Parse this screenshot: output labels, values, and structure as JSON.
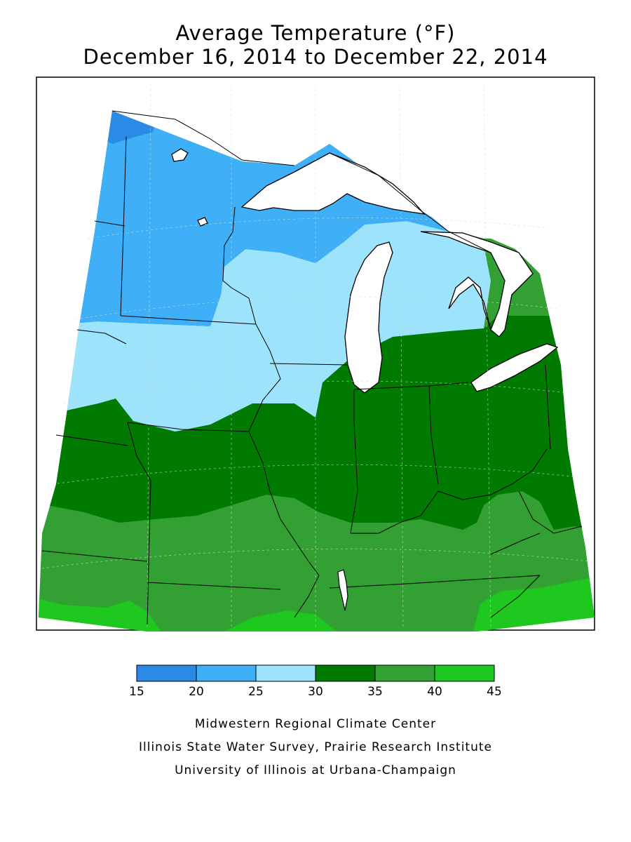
{
  "title": "Average Temperature (°F)",
  "subtitle": "December 16, 2014 to December 22, 2014",
  "colors": {
    "c15_20": "#2b8ae6",
    "c20_25": "#3fb0f8",
    "c25_30": "#9ce3fb",
    "c30_35": "#007a00",
    "c35_40": "#32a032",
    "c40_45": "#1ec81e",
    "water": "#ffffff",
    "outline": "#000000"
  },
  "legend": {
    "bins": [
      {
        "from": 15,
        "to": 20,
        "color": "#2b8ae6"
      },
      {
        "from": 20,
        "to": 25,
        "color": "#3fb0f8"
      },
      {
        "from": 25,
        "to": 30,
        "color": "#9ce3fb"
      },
      {
        "from": 30,
        "to": 35,
        "color": "#007a00"
      },
      {
        "from": 35,
        "to": 40,
        "color": "#32a032"
      },
      {
        "from": 40,
        "to": 45,
        "color": "#1ec81e"
      }
    ],
    "ticks": [
      "15",
      "20",
      "25",
      "30",
      "35",
      "40",
      "45"
    ]
  },
  "credits": [
    "Midwestern Regional Climate Center",
    "Illinois State Water Survey, Prairie Research Institute",
    "University of Illinois at Urbana-Champaign"
  ]
}
